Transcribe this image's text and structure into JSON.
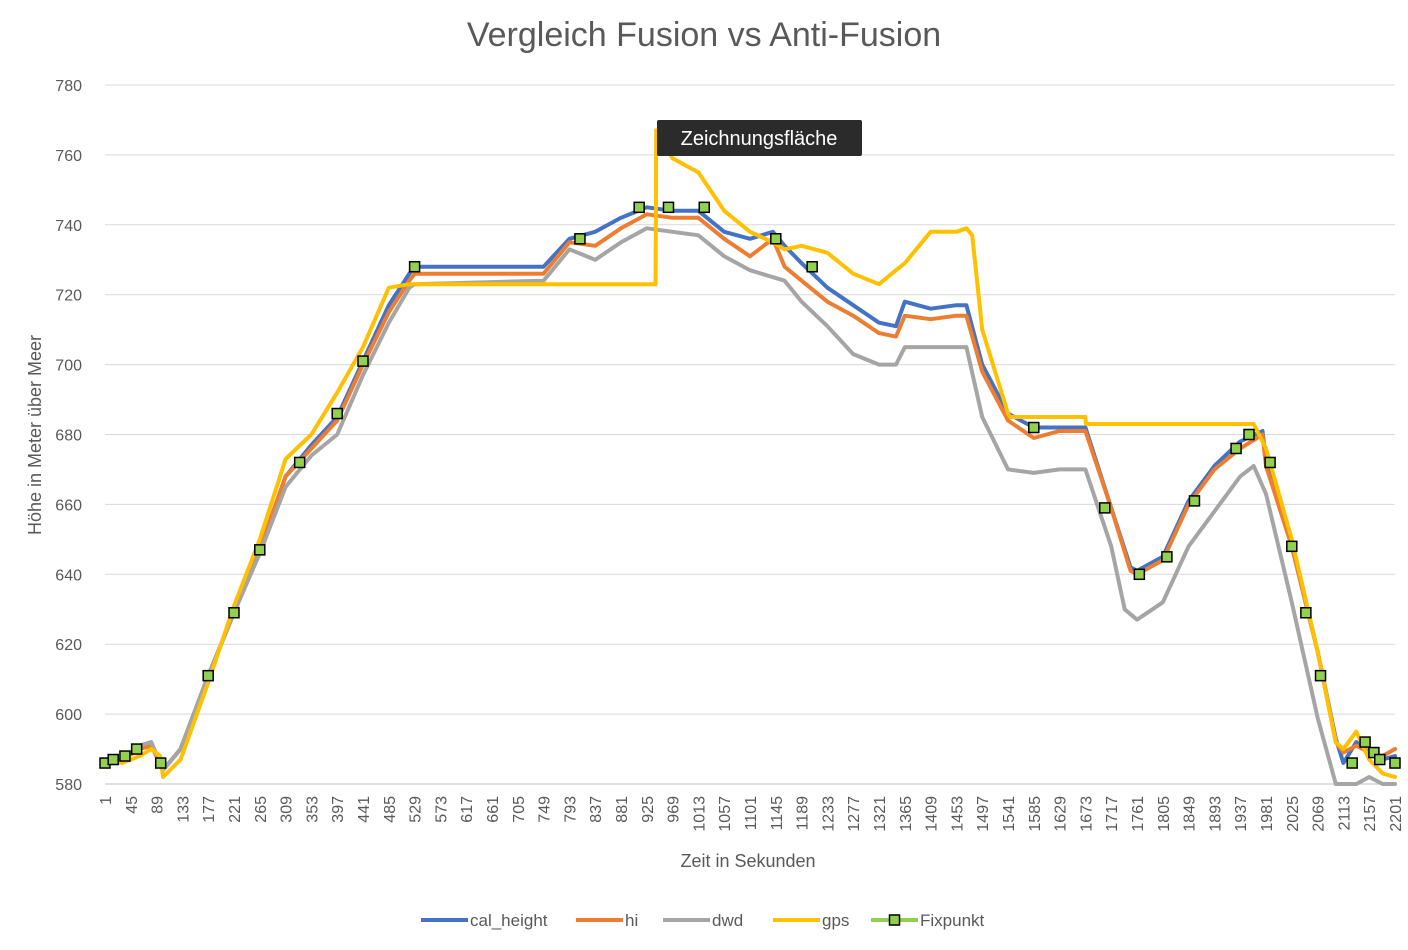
{
  "chart_data": {
    "type": "line",
    "title": "Vergleich Fusion vs Anti-Fusion",
    "xlabel": "Zeit in Sekunden",
    "ylabel": "Höhe in Meter über Meer",
    "ylim": [
      580,
      780
    ],
    "xlim": [
      1,
      2201
    ],
    "y_ticks": [
      580,
      600,
      620,
      640,
      660,
      680,
      700,
      720,
      740,
      760,
      780
    ],
    "x_ticks": [
      1,
      45,
      89,
      133,
      177,
      221,
      265,
      309,
      353,
      397,
      441,
      485,
      529,
      573,
      617,
      661,
      705,
      749,
      793,
      837,
      881,
      925,
      969,
      1013,
      1057,
      1101,
      1145,
      1189,
      1233,
      1277,
      1321,
      1365,
      1409,
      1453,
      1497,
      1541,
      1585,
      1629,
      1673,
      1717,
      1761,
      1805,
      1849,
      1893,
      1937,
      1981,
      2025,
      2069,
      2113,
      2157,
      2201
    ],
    "grid": "horizontal",
    "legend_position": "bottom",
    "tooltip": "Zeichnungsfläche",
    "series": [
      {
        "name": "cal_height",
        "color": "#4472C4",
        "x": [
          1,
          30,
          60,
          80,
          100,
          130,
          177,
          221,
          265,
          309,
          353,
          397,
          441,
          485,
          520,
          529,
          749,
          793,
          837,
          881,
          925,
          969,
          1013,
          1057,
          1101,
          1140,
          1160,
          1189,
          1233,
          1277,
          1321,
          1350,
          1365,
          1409,
          1453,
          1470,
          1497,
          1541,
          1585,
          1629,
          1673,
          1717,
          1750,
          1761,
          1805,
          1849,
          1893,
          1937,
          1975,
          1981,
          2025,
          2069,
          2100,
          2113,
          2135,
          2157,
          2180,
          2201
        ],
        "y": [
          586,
          587,
          590,
          591,
          584,
          590,
          611,
          629,
          647,
          668,
          677,
          685,
          701,
          717,
          726,
          728,
          728,
          736,
          738,
          742,
          745,
          744,
          744,
          738,
          736,
          738,
          734,
          729,
          722,
          717,
          712,
          711,
          718,
          716,
          717,
          717,
          700,
          686,
          682,
          682,
          682,
          659,
          642,
          641,
          645,
          661,
          671,
          678,
          681,
          672,
          648,
          618,
          593,
          586,
          592,
          589,
          587,
          588
        ]
      },
      {
        "name": "hi",
        "color": "#ED7D31",
        "x": [
          1,
          30,
          60,
          80,
          100,
          130,
          177,
          221,
          265,
          309,
          353,
          397,
          441,
          485,
          520,
          529,
          749,
          793,
          837,
          881,
          925,
          969,
          1013,
          1057,
          1101,
          1140,
          1160,
          1189,
          1233,
          1277,
          1321,
          1350,
          1365,
          1409,
          1453,
          1470,
          1497,
          1541,
          1585,
          1629,
          1673,
          1717,
          1750,
          1761,
          1805,
          1849,
          1893,
          1937,
          1975,
          1981,
          2025,
          2069,
          2100,
          2113,
          2135,
          2157,
          2180,
          2201
        ],
        "y": [
          586,
          587,
          590,
          591,
          584,
          590,
          611,
          629,
          647,
          668,
          676,
          684,
          700,
          715,
          724,
          726,
          726,
          735,
          734,
          739,
          743,
          742,
          742,
          736,
          731,
          736,
          728,
          724,
          718,
          714,
          709,
          708,
          714,
          713,
          714,
          714,
          698,
          684,
          679,
          681,
          681,
          659,
          641,
          640,
          644,
          660,
          670,
          676,
          680,
          671,
          648,
          618,
          592,
          589,
          591,
          589,
          588,
          590
        ]
      },
      {
        "name": "dwd",
        "color": "#A5A5A5",
        "x": [
          1,
          30,
          60,
          80,
          100,
          130,
          177,
          221,
          265,
          309,
          353,
          397,
          441,
          485,
          520,
          529,
          749,
          793,
          837,
          881,
          925,
          969,
          1013,
          1057,
          1101,
          1140,
          1160,
          1189,
          1233,
          1277,
          1321,
          1350,
          1365,
          1409,
          1453,
          1470,
          1497,
          1541,
          1585,
          1629,
          1673,
          1717,
          1740,
          1761,
          1805,
          1849,
          1893,
          1937,
          1960,
          1981,
          2025,
          2069,
          2100,
          2113,
          2135,
          2157,
          2180,
          2201
        ],
        "y": [
          586,
          587,
          591,
          592,
          584,
          590,
          611,
          629,
          646,
          665,
          674,
          680,
          697,
          712,
          722,
          723,
          724,
          733,
          730,
          735,
          739,
          738,
          737,
          731,
          727,
          725,
          724,
          718,
          711,
          703,
          700,
          700,
          705,
          705,
          705,
          705,
          685,
          670,
          669,
          670,
          670,
          648,
          630,
          627,
          632,
          648,
          658,
          668,
          671,
          663,
          632,
          599,
          578,
          580,
          580,
          582,
          580,
          580
        ]
      },
      {
        "name": "gps",
        "color": "#FFC000",
        "x": [
          1,
          30,
          60,
          80,
          95,
          100,
          130,
          177,
          221,
          265,
          309,
          353,
          397,
          441,
          485,
          520,
          529,
          749,
          793,
          837,
          881,
          925,
          940,
          941,
          969,
          1013,
          1057,
          1101,
          1140,
          1160,
          1189,
          1233,
          1277,
          1321,
          1350,
          1365,
          1409,
          1453,
          1470,
          1480,
          1497,
          1541,
          1545,
          1585,
          1673,
          1674,
          1717,
          1761,
          1805,
          1849,
          1893,
          1937,
          1960,
          1981,
          2025,
          2069,
          2100,
          2113,
          2135,
          2157,
          2180,
          2201
        ],
        "y": [
          587,
          586,
          588,
          590,
          588,
          582,
          587,
          609,
          631,
          650,
          673,
          680,
          692,
          705,
          722,
          723,
          723,
          723,
          723,
          723,
          723,
          723,
          723,
          767,
          759,
          755,
          744,
          738,
          735,
          733,
          734,
          732,
          726,
          723,
          727,
          729,
          738,
          738,
          739,
          737,
          710,
          686,
          685,
          685,
          685,
          683,
          683,
          683,
          683,
          683,
          683,
          683,
          683,
          676,
          650,
          618,
          592,
          590,
          595,
          587,
          583,
          582
        ]
      }
    ],
    "fixpunkt": {
      "name": "Fixpunkt",
      "color": "#92D050",
      "x": [
        1,
        15,
        35,
        55,
        96,
        177,
        221,
        265,
        333,
        397,
        441,
        529,
        811,
        912,
        962,
        1023,
        1145,
        1207,
        1585,
        1706,
        1765,
        1812,
        1859,
        1930,
        1952,
        1988,
        2025,
        2049,
        2074,
        2128,
        2150,
        2165,
        2175,
        2201
      ],
      "y": [
        586,
        587,
        588,
        590,
        586,
        611,
        629,
        647,
        672,
        686,
        701,
        728,
        736,
        745,
        745,
        745,
        736,
        728,
        682,
        659,
        640,
        645,
        661,
        676,
        680,
        672,
        648,
        629,
        611,
        586,
        592,
        589,
        587,
        586
      ]
    }
  }
}
